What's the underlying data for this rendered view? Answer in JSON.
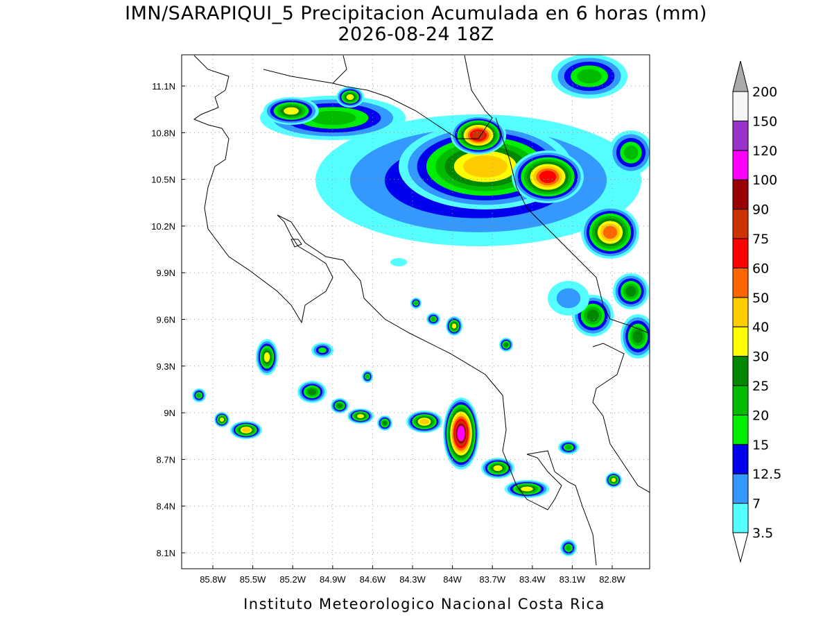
{
  "title": [
    "IMN/SARAPIQUI_5 Precipitacion Acumulada en 6 horas (mm)",
    "2026-08-24 18Z"
  ],
  "x_ticks": [
    "85.8W",
    "85.5W",
    "85.2W",
    "84.9W",
    "84.6W",
    "84.3W",
    "84W",
    "83.7W",
    "83.4W",
    "83.1W",
    "82.8W"
  ],
  "y_ticks": [
    "11.1N",
    "10.8N",
    "10.5N",
    "10.2N",
    "9.9N",
    "9.6N",
    "9.3N",
    "9N",
    "8.7N",
    "8.4N",
    "8.1N"
  ],
  "colorbar": {
    "levels": [
      3.5,
      7,
      12.5,
      15,
      20,
      25,
      30,
      40,
      50,
      60,
      75,
      90,
      100,
      120,
      150,
      200
    ],
    "colors": [
      "#55ffff",
      "#3399ff",
      "#0000ee",
      "#00ee00",
      "#00bb00",
      "#008800",
      "#ffff00",
      "#ffcc00",
      "#ff6600",
      "#ff0000",
      "#cc3300",
      "#990000",
      "#ff00ff",
      "#9933cc",
      "#f5f5f5"
    ],
    "over_color": "#aaaaaa",
    "under_color": "#ffffff"
  },
  "footer": "Instituto Meteorologico Nacional Costa Rica"
}
